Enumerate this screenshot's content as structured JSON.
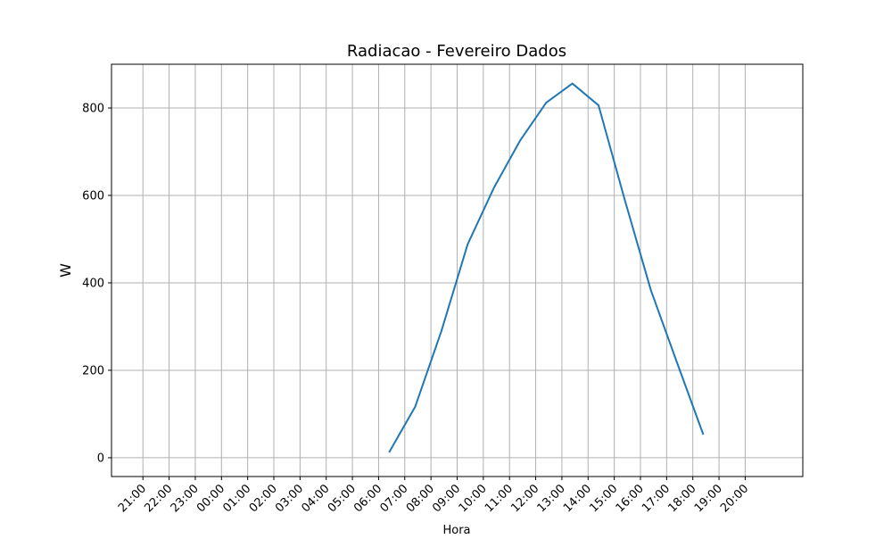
{
  "chart_data": {
    "type": "line",
    "title": "Radiacao - Fevereiro Dados",
    "xlabel": "Hora",
    "ylabel": "W",
    "xlim": [
      -1.2,
      25.2
    ],
    "ylim": [
      -43,
      900
    ],
    "grid": true,
    "tick_labels_x": [
      "21:00",
      "22:00",
      "23:00",
      "00:00",
      "01:00",
      "02:00",
      "03:00",
      "04:00",
      "05:00",
      "06:00",
      "07:00",
      "08:00",
      "09:00",
      "10:00",
      "11:00",
      "12:00",
      "13:00",
      "14:00",
      "15:00",
      "16:00",
      "17:00",
      "18:00",
      "19:00",
      "20:00"
    ],
    "tick_values_y": [
      0,
      200,
      400,
      600,
      800
    ],
    "series": [
      {
        "color": "#1f77b4",
        "x": [
          9.4,
          10.4,
          11.4,
          12.4,
          13.4,
          14.4,
          15.4,
          16.4,
          17.4,
          18.4,
          19.4,
          20.4,
          21.4,
          22.4
        ],
        "y": [
          12,
          117,
          290,
          488,
          617,
          725,
          812,
          856,
          806,
          590,
          383,
          217,
          53,
          null
        ]
      }
    ]
  },
  "colors": {
    "line": "#1f77b4",
    "grid": "#b0b0b0",
    "axes": "#000000"
  }
}
